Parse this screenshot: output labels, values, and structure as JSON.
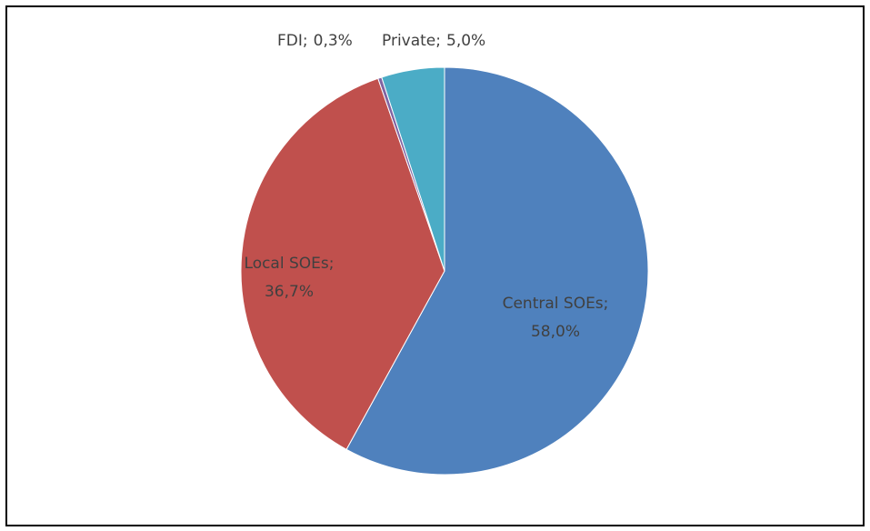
{
  "chart_data": {
    "type": "pie",
    "categories": [
      "Central SOEs;",
      "Local SOEs;",
      "FDI;",
      "Private;"
    ],
    "values": [
      58.0,
      36.7,
      0.3,
      5.0
    ],
    "value_labels": [
      "58,0%",
      "36,7%",
      "0,3%",
      "5,0%"
    ],
    "colors": [
      "#4f81bd",
      "#c0504d",
      "#8064a2",
      "#4bacc6"
    ]
  }
}
